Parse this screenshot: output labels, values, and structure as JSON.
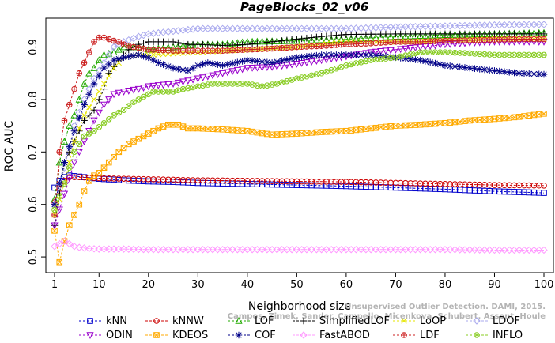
{
  "chart_data": {
    "type": "line",
    "title": "PageBlocks_02_v06",
    "xlabel": "Neighborhood size",
    "ylabel": "ROC AUC",
    "xlim": [
      1,
      100
    ],
    "ylim": [
      0.47,
      0.955
    ],
    "x_ticks": [
      1,
      10,
      20,
      30,
      40,
      50,
      60,
      70,
      80,
      90,
      100
    ],
    "y_ticks": [
      0.5,
      0.6,
      0.7,
      0.8,
      0.9
    ],
    "y_tick_labels": [
      "0.5",
      "0.6",
      "0.7",
      "0.8",
      "0.9"
    ],
    "grid": false,
    "legend_position": "bottom",
    "watermark": [
      "Campos, Zimek, Sander, Campello, Micenkova, Schubert, Assent, Houle",
      "Unsupervised Outlier Detection. DAMI, 2015."
    ],
    "series": [
      {
        "name": "kNN",
        "color": "#0000cc",
        "marker": "square",
        "points": [
          [
            1,
            0.632
          ],
          [
            2,
            0.645
          ],
          [
            3,
            0.652
          ],
          [
            4,
            0.655
          ],
          [
            5,
            0.654
          ],
          [
            6,
            0.653
          ],
          [
            8,
            0.651
          ],
          [
            10,
            0.649
          ],
          [
            15,
            0.646
          ],
          [
            20,
            0.644
          ],
          [
            25,
            0.643
          ],
          [
            30,
            0.641
          ],
          [
            40,
            0.639
          ],
          [
            50,
            0.637
          ],
          [
            60,
            0.635
          ],
          [
            70,
            0.632
          ],
          [
            80,
            0.629
          ],
          [
            90,
            0.625
          ],
          [
            100,
            0.622
          ]
        ]
      },
      {
        "name": "kNNW",
        "color": "#cc0000",
        "marker": "circle",
        "points": [
          [
            1,
            0.604
          ],
          [
            2,
            0.63
          ],
          [
            3,
            0.645
          ],
          [
            4,
            0.652
          ],
          [
            5,
            0.652
          ],
          [
            6,
            0.652
          ],
          [
            8,
            0.651
          ],
          [
            10,
            0.65
          ],
          [
            15,
            0.649
          ],
          [
            20,
            0.648
          ],
          [
            30,
            0.646
          ],
          [
            40,
            0.645
          ],
          [
            50,
            0.644
          ],
          [
            60,
            0.643
          ],
          [
            70,
            0.641
          ],
          [
            80,
            0.639
          ],
          [
            90,
            0.637
          ],
          [
            100,
            0.636
          ]
        ]
      },
      {
        "name": "LOF",
        "color": "#22aa00",
        "marker": "triangle-up",
        "points": [
          [
            1,
            0.61
          ],
          [
            2,
            0.68
          ],
          [
            3,
            0.72
          ],
          [
            4,
            0.75
          ],
          [
            5,
            0.77
          ],
          [
            6,
            0.8
          ],
          [
            7,
            0.83
          ],
          [
            8,
            0.85
          ],
          [
            9,
            0.86
          ],
          [
            10,
            0.875
          ],
          [
            11,
            0.885
          ],
          [
            13,
            0.89
          ],
          [
            15,
            0.9
          ],
          [
            18,
            0.9
          ],
          [
            20,
            0.895
          ],
          [
            25,
            0.9
          ],
          [
            30,
            0.905
          ],
          [
            35,
            0.905
          ],
          [
            40,
            0.91
          ],
          [
            50,
            0.912
          ],
          [
            60,
            0.915
          ],
          [
            70,
            0.92
          ],
          [
            80,
            0.923
          ],
          [
            90,
            0.925
          ],
          [
            100,
            0.927
          ]
        ]
      },
      {
        "name": "SimplifiedLOF",
        "color": "#000000",
        "marker": "plus",
        "points": [
          [
            1,
            0.56
          ],
          [
            2,
            0.62
          ],
          [
            3,
            0.68
          ],
          [
            4,
            0.7
          ],
          [
            5,
            0.72
          ],
          [
            6,
            0.74
          ],
          [
            7,
            0.76
          ],
          [
            8,
            0.77
          ],
          [
            9,
            0.78
          ],
          [
            10,
            0.8
          ],
          [
            11,
            0.82
          ],
          [
            12,
            0.85
          ],
          [
            14,
            0.875
          ],
          [
            16,
            0.895
          ],
          [
            18,
            0.905
          ],
          [
            20,
            0.91
          ],
          [
            25,
            0.91
          ],
          [
            28,
            0.905
          ],
          [
            30,
            0.905
          ],
          [
            35,
            0.903
          ],
          [
            40,
            0.905
          ],
          [
            45,
            0.91
          ],
          [
            50,
            0.915
          ],
          [
            55,
            0.92
          ],
          [
            60,
            0.924
          ],
          [
            70,
            0.925
          ],
          [
            80,
            0.925
          ],
          [
            90,
            0.925
          ],
          [
            100,
            0.925
          ]
        ]
      },
      {
        "name": "LoOP",
        "color": "#e6e600",
        "marker": "x",
        "points": [
          [
            1,
            0.58
          ],
          [
            3,
            0.64
          ],
          [
            5,
            0.72
          ],
          [
            7,
            0.77
          ],
          [
            9,
            0.8
          ],
          [
            11,
            0.83
          ],
          [
            13,
            0.86
          ],
          [
            15,
            0.88
          ],
          [
            18,
            0.885
          ],
          [
            20,
            0.885
          ],
          [
            30,
            0.89
          ],
          [
            40,
            0.895
          ],
          [
            50,
            0.9
          ],
          [
            60,
            0.91
          ],
          [
            70,
            0.91
          ],
          [
            80,
            0.912
          ],
          [
            90,
            0.915
          ],
          [
            100,
            0.915
          ]
        ]
      },
      {
        "name": "LDOF",
        "color": "#aaaaee",
        "marker": "diamond",
        "points": [
          [
            1,
            0.6
          ],
          [
            3,
            0.67
          ],
          [
            5,
            0.75
          ],
          [
            7,
            0.8
          ],
          [
            9,
            0.84
          ],
          [
            11,
            0.87
          ],
          [
            13,
            0.9
          ],
          [
            15,
            0.91
          ],
          [
            18,
            0.92
          ],
          [
            20,
            0.925
          ],
          [
            25,
            0.93
          ],
          [
            30,
            0.935
          ],
          [
            40,
            0.935
          ],
          [
            50,
            0.935
          ],
          [
            60,
            0.935
          ],
          [
            70,
            0.938
          ],
          [
            80,
            0.94
          ],
          [
            90,
            0.942
          ],
          [
            100,
            0.943
          ]
        ]
      },
      {
        "name": "ODIN",
        "color": "#9900cc",
        "marker": "triangle-down",
        "points": [
          [
            1,
            0.56
          ],
          [
            3,
            0.62
          ],
          [
            5,
            0.68
          ],
          [
            7,
            0.72
          ],
          [
            9,
            0.76
          ],
          [
            11,
            0.79
          ],
          [
            13,
            0.81
          ],
          [
            15,
            0.815
          ],
          [
            18,
            0.82
          ],
          [
            20,
            0.825
          ],
          [
            25,
            0.83
          ],
          [
            30,
            0.84
          ],
          [
            35,
            0.85
          ],
          [
            40,
            0.86
          ],
          [
            45,
            0.862
          ],
          [
            50,
            0.868
          ],
          [
            55,
            0.875
          ],
          [
            60,
            0.882
          ],
          [
            65,
            0.89
          ],
          [
            70,
            0.895
          ],
          [
            75,
            0.9
          ],
          [
            80,
            0.905
          ],
          [
            85,
            0.908
          ],
          [
            90,
            0.91
          ],
          [
            95,
            0.91
          ],
          [
            100,
            0.91
          ]
        ]
      },
      {
        "name": "KDEOS",
        "color": "#ffaa00",
        "marker": "square-x",
        "points": [
          [
            1,
            0.55
          ],
          [
            2,
            0.49
          ],
          [
            3,
            0.53
          ],
          [
            4,
            0.56
          ],
          [
            5,
            0.58
          ],
          [
            6,
            0.6
          ],
          [
            7,
            0.625
          ],
          [
            8,
            0.645
          ],
          [
            9,
            0.655
          ],
          [
            10,
            0.66
          ],
          [
            12,
            0.68
          ],
          [
            14,
            0.7
          ],
          [
            16,
            0.715
          ],
          [
            18,
            0.725
          ],
          [
            20,
            0.735
          ],
          [
            22,
            0.745
          ],
          [
            24,
            0.752
          ],
          [
            26,
            0.752
          ],
          [
            28,
            0.745
          ],
          [
            30,
            0.745
          ],
          [
            35,
            0.743
          ],
          [
            40,
            0.74
          ],
          [
            45,
            0.733
          ],
          [
            50,
            0.735
          ],
          [
            55,
            0.738
          ],
          [
            60,
            0.74
          ],
          [
            65,
            0.745
          ],
          [
            70,
            0.75
          ],
          [
            75,
            0.752
          ],
          [
            80,
            0.755
          ],
          [
            85,
            0.76
          ],
          [
            90,
            0.763
          ],
          [
            95,
            0.767
          ],
          [
            100,
            0.773
          ]
        ]
      },
      {
        "name": "COF",
        "color": "#000088",
        "marker": "asterisk",
        "points": [
          [
            1,
            0.6
          ],
          [
            3,
            0.68
          ],
          [
            5,
            0.74
          ],
          [
            7,
            0.79
          ],
          [
            9,
            0.83
          ],
          [
            11,
            0.86
          ],
          [
            13,
            0.875
          ],
          [
            15,
            0.88
          ],
          [
            18,
            0.885
          ],
          [
            20,
            0.88
          ],
          [
            22,
            0.87
          ],
          [
            25,
            0.86
          ],
          [
            28,
            0.855
          ],
          [
            30,
            0.865
          ],
          [
            32,
            0.87
          ],
          [
            35,
            0.865
          ],
          [
            40,
            0.875
          ],
          [
            45,
            0.87
          ],
          [
            50,
            0.88
          ],
          [
            55,
            0.885
          ],
          [
            60,
            0.885
          ],
          [
            65,
            0.885
          ],
          [
            70,
            0.88
          ],
          [
            75,
            0.875
          ],
          [
            80,
            0.865
          ],
          [
            85,
            0.86
          ],
          [
            90,
            0.855
          ],
          [
            95,
            0.85
          ],
          [
            100,
            0.848
          ]
        ]
      },
      {
        "name": "FastABOD",
        "color": "#ff99ff",
        "marker": "diamond",
        "points": [
          [
            1,
            0.52
          ],
          [
            2,
            0.525
          ],
          [
            3,
            0.53
          ],
          [
            4,
            0.525
          ],
          [
            5,
            0.52
          ],
          [
            6,
            0.518
          ],
          [
            8,
            0.516
          ],
          [
            10,
            0.515
          ],
          [
            15,
            0.515
          ],
          [
            20,
            0.514
          ],
          [
            30,
            0.514
          ],
          [
            40,
            0.514
          ],
          [
            50,
            0.514
          ],
          [
            60,
            0.514
          ],
          [
            70,
            0.514
          ],
          [
            80,
            0.514
          ],
          [
            90,
            0.513
          ],
          [
            100,
            0.513
          ]
        ]
      },
      {
        "name": "LDF",
        "color": "#cc2222",
        "marker": "circle-plus",
        "points": [
          [
            1,
            0.58
          ],
          [
            2,
            0.7
          ],
          [
            3,
            0.76
          ],
          [
            4,
            0.79
          ],
          [
            5,
            0.82
          ],
          [
            6,
            0.85
          ],
          [
            7,
            0.87
          ],
          [
            8,
            0.89
          ],
          [
            9,
            0.91
          ],
          [
            10,
            0.918
          ],
          [
            11,
            0.918
          ],
          [
            12,
            0.915
          ],
          [
            13,
            0.912
          ],
          [
            14,
            0.91
          ],
          [
            15,
            0.905
          ],
          [
            17,
            0.9
          ],
          [
            20,
            0.895
          ],
          [
            25,
            0.893
          ],
          [
            30,
            0.893
          ],
          [
            35,
            0.893
          ],
          [
            40,
            0.895
          ],
          [
            45,
            0.897
          ],
          [
            50,
            0.9
          ],
          [
            55,
            0.902
          ],
          [
            60,
            0.905
          ],
          [
            65,
            0.907
          ],
          [
            70,
            0.91
          ],
          [
            75,
            0.91
          ],
          [
            80,
            0.912
          ],
          [
            85,
            0.913
          ],
          [
            90,
            0.914
          ],
          [
            95,
            0.915
          ],
          [
            100,
            0.915
          ]
        ]
      },
      {
        "name": "INFLO",
        "color": "#88cc22",
        "marker": "circle-x",
        "points": [
          [
            1,
            0.59
          ],
          [
            3,
            0.64
          ],
          [
            5,
            0.7
          ],
          [
            7,
            0.73
          ],
          [
            9,
            0.74
          ],
          [
            11,
            0.755
          ],
          [
            13,
            0.77
          ],
          [
            15,
            0.78
          ],
          [
            17,
            0.795
          ],
          [
            19,
            0.805
          ],
          [
            21,
            0.815
          ],
          [
            23,
            0.815
          ],
          [
            25,
            0.815
          ],
          [
            27,
            0.82
          ],
          [
            30,
            0.825
          ],
          [
            33,
            0.83
          ],
          [
            36,
            0.83
          ],
          [
            40,
            0.83
          ],
          [
            43,
            0.825
          ],
          [
            46,
            0.83
          ],
          [
            50,
            0.84
          ],
          [
            55,
            0.85
          ],
          [
            60,
            0.865
          ],
          [
            65,
            0.875
          ],
          [
            70,
            0.88
          ],
          [
            75,
            0.89
          ],
          [
            80,
            0.89
          ],
          [
            85,
            0.888
          ],
          [
            90,
            0.885
          ],
          [
            95,
            0.885
          ],
          [
            100,
            0.885
          ]
        ]
      }
    ]
  }
}
